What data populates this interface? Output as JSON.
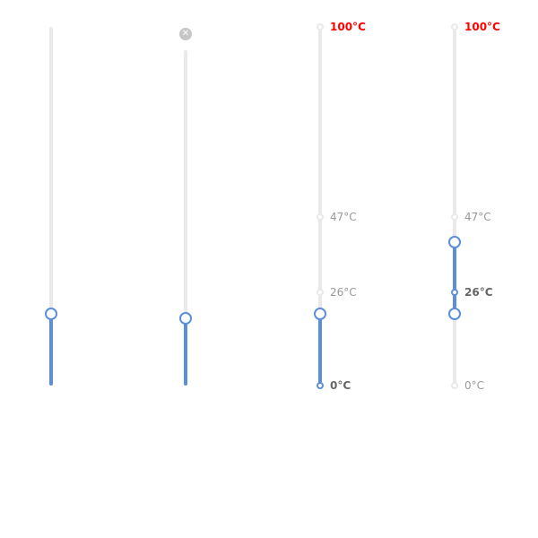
{
  "sliders": [
    {
      "id": "basic",
      "min": 0,
      "max": 100,
      "value": 20
    },
    {
      "id": "allow-clear",
      "min": 0,
      "max": 100,
      "value": 20,
      "clear_icon": "close-icon",
      "clear_glyph": "✕"
    },
    {
      "id": "marks-single",
      "min": 0,
      "max": 100,
      "value": 20,
      "marks": [
        {
          "value": 0,
          "label": "0°C"
        },
        {
          "value": 26,
          "label": "26°C"
        },
        {
          "value": 47,
          "label": "47°C"
        },
        {
          "value": 100,
          "label": "100°C"
        }
      ]
    },
    {
      "id": "marks-range",
      "min": 0,
      "max": 100,
      "range": [
        20,
        40
      ],
      "marks": [
        {
          "value": 0,
          "label": "0°C"
        },
        {
          "value": 26,
          "label": "26°C"
        },
        {
          "value": 47,
          "label": "47°C"
        },
        {
          "value": 100,
          "label": "100°C"
        }
      ]
    }
  ],
  "colors": {
    "track": "#5b8fdb",
    "rail": "#e9e9e9",
    "mark_text": "#999999",
    "mark_active_text": "#666666",
    "max_mark_text": "#ff0000"
  }
}
